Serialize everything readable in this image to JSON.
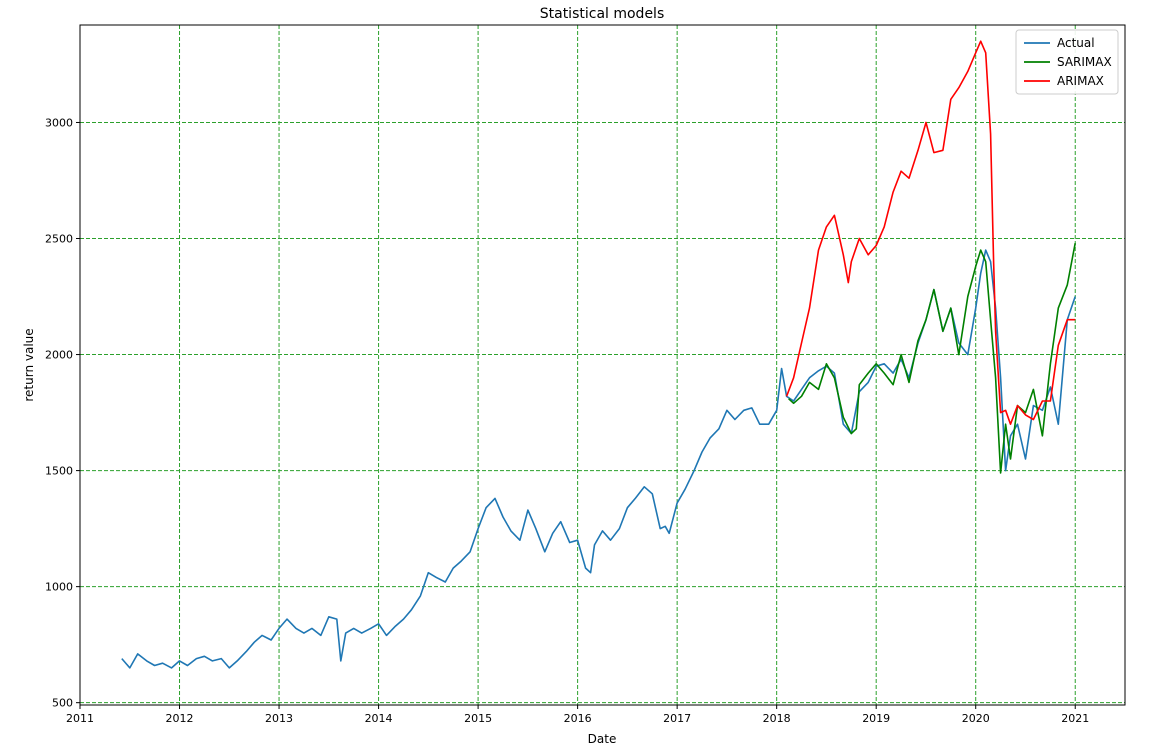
{
  "chart_data": {
    "type": "line",
    "title": "Statistical models",
    "xlabel": "Date",
    "ylabel": "return value",
    "xlim": [
      2011.0,
      2021.5
    ],
    "ylim": [
      490,
      3420
    ],
    "x_ticks": [
      "2011",
      "2012",
      "2013",
      "2014",
      "2015",
      "2016",
      "2017",
      "2018",
      "2019",
      "2020",
      "2021"
    ],
    "y_ticks": [
      500,
      1000,
      1500,
      2000,
      2500,
      3000
    ],
    "grid": true,
    "grid_style": "dashed",
    "grid_color": "#2ca02c",
    "legend_position": "top-right",
    "series": [
      {
        "name": "Actual",
        "color": "#1f77b4",
        "x": [
          2011.42,
          2011.5,
          2011.58,
          2011.67,
          2011.75,
          2011.83,
          2011.92,
          2012.0,
          2012.08,
          2012.17,
          2012.25,
          2012.33,
          2012.42,
          2012.5,
          2012.58,
          2012.67,
          2012.75,
          2012.83,
          2012.92,
          2013.0,
          2013.08,
          2013.17,
          2013.25,
          2013.33,
          2013.42,
          2013.5,
          2013.58,
          2013.62,
          2013.67,
          2013.75,
          2013.83,
          2013.92,
          2014.0,
          2014.08,
          2014.17,
          2014.25,
          2014.33,
          2014.42,
          2014.5,
          2014.58,
          2014.67,
          2014.75,
          2014.83,
          2014.92,
          2015.0,
          2015.08,
          2015.17,
          2015.25,
          2015.33,
          2015.42,
          2015.5,
          2015.58,
          2015.67,
          2015.75,
          2015.83,
          2015.92,
          2016.0,
          2016.08,
          2016.13,
          2016.17,
          2016.25,
          2016.33,
          2016.42,
          2016.5,
          2016.58,
          2016.67,
          2016.75,
          2016.83,
          2016.88,
          2016.92,
          2017.0,
          2017.08,
          2017.17,
          2017.25,
          2017.33,
          2017.42,
          2017.5,
          2017.58,
          2017.67,
          2017.75,
          2017.83,
          2017.92,
          2018.0,
          2018.05,
          2018.1,
          2018.17,
          2018.25,
          2018.33,
          2018.42,
          2018.5,
          2018.58,
          2018.67,
          2018.75,
          2018.83,
          2018.92,
          2019.0,
          2019.08,
          2019.17,
          2019.25,
          2019.33,
          2019.42,
          2019.5,
          2019.58,
          2019.67,
          2019.75,
          2019.83,
          2019.92,
          2020.0,
          2020.05,
          2020.1,
          2020.15,
          2020.2,
          2020.25,
          2020.3,
          2020.35,
          2020.42,
          2020.5,
          2020.58,
          2020.67,
          2020.75,
          2020.83,
          2020.92,
          2021.0
        ],
        "y": [
          690,
          650,
          710,
          680,
          660,
          670,
          650,
          680,
          660,
          690,
          700,
          680,
          690,
          650,
          680,
          720,
          760,
          790,
          770,
          820,
          860,
          820,
          800,
          820,
          790,
          870,
          860,
          680,
          800,
          820,
          800,
          820,
          840,
          790,
          830,
          860,
          900,
          960,
          1060,
          1040,
          1020,
          1080,
          1110,
          1150,
          1250,
          1340,
          1380,
          1300,
          1240,
          1200,
          1330,
          1250,
          1150,
          1230,
          1280,
          1190,
          1200,
          1080,
          1060,
          1180,
          1240,
          1200,
          1250,
          1340,
          1380,
          1430,
          1400,
          1250,
          1260,
          1230,
          1360,
          1420,
          1500,
          1580,
          1640,
          1680,
          1760,
          1720,
          1760,
          1770,
          1700,
          1700,
          1760,
          1940,
          1820,
          1800,
          1850,
          1900,
          1930,
          1950,
          1920,
          1700,
          1660,
          1840,
          1880,
          1950,
          1960,
          1920,
          1980,
          1900,
          2050,
          2150,
          2280,
          2100,
          2200,
          2050,
          2000,
          2200,
          2350,
          2450,
          2400,
          2200,
          1900,
          1500,
          1650,
          1700,
          1550,
          1780,
          1760,
          1860,
          1700,
          2150,
          2250
        ]
      },
      {
        "name": "SARIMAX",
        "color": "#008000",
        "x": [
          2018.12,
          2018.17,
          2018.25,
          2018.33,
          2018.42,
          2018.5,
          2018.58,
          2018.67,
          2018.75,
          2018.8,
          2018.83,
          2018.92,
          2019.0,
          2019.08,
          2019.17,
          2019.25,
          2019.33,
          2019.42,
          2019.5,
          2019.58,
          2019.67,
          2019.75,
          2019.83,
          2019.92,
          2020.0,
          2020.05,
          2020.1,
          2020.15,
          2020.2,
          2020.25,
          2020.3,
          2020.35,
          2020.42,
          2020.5,
          2020.58,
          2020.67,
          2020.75,
          2020.83,
          2020.92,
          2021.0
        ],
        "y": [
          1810,
          1790,
          1820,
          1880,
          1850,
          1960,
          1900,
          1730,
          1660,
          1680,
          1870,
          1920,
          1960,
          1920,
          1870,
          2000,
          1880,
          2060,
          2150,
          2280,
          2100,
          2200,
          2000,
          2250,
          2380,
          2450,
          2400,
          2150,
          1900,
          1490,
          1700,
          1550,
          1780,
          1750,
          1850,
          1650,
          1960,
          2200,
          2300,
          2480
        ]
      },
      {
        "name": "ARIMAX",
        "color": "#ff0000",
        "x": [
          2018.1,
          2018.17,
          2018.25,
          2018.33,
          2018.42,
          2018.5,
          2018.58,
          2018.67,
          2018.72,
          2018.75,
          2018.83,
          2018.92,
          2019.0,
          2019.08,
          2019.17,
          2019.25,
          2019.33,
          2019.42,
          2019.5,
          2019.58,
          2019.67,
          2019.75,
          2019.83,
          2019.92,
          2020.0,
          2020.05,
          2020.1,
          2020.15,
          2020.18,
          2020.2,
          2020.25,
          2020.3,
          2020.35,
          2020.42,
          2020.5,
          2020.58,
          2020.67,
          2020.75,
          2020.83,
          2020.92,
          2021.0
        ],
        "y": [
          1820,
          1900,
          2050,
          2200,
          2450,
          2550,
          2600,
          2430,
          2310,
          2400,
          2500,
          2430,
          2470,
          2550,
          2700,
          2790,
          2760,
          2880,
          3000,
          2870,
          2880,
          3100,
          3150,
          3220,
          3300,
          3350,
          3300,
          2950,
          2400,
          2100,
          1750,
          1760,
          1700,
          1780,
          1740,
          1720,
          1800,
          1800,
          2040,
          2150,
          2150
        ]
      }
    ]
  }
}
